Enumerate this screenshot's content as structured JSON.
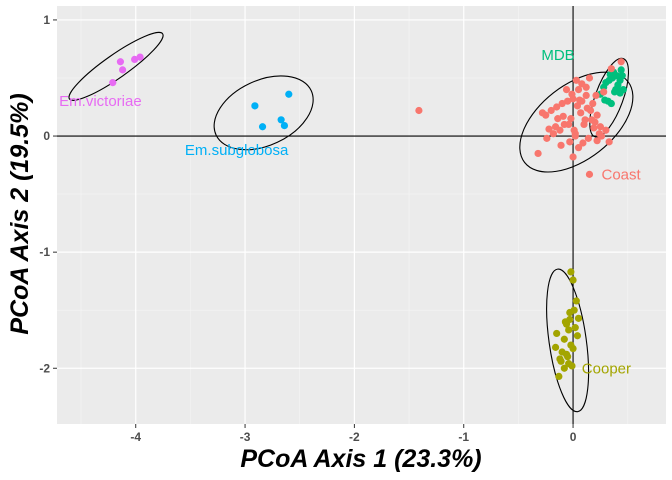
{
  "chart_data": {
    "type": "scatter",
    "xlabel": "PCoA Axis 1 (23.3%)",
    "ylabel": "PCoA Axis 2 (19.5%)",
    "xlim": [
      -4.72,
      0.85
    ],
    "ylim": [
      -2.48,
      1.12
    ],
    "xticks": [
      -4,
      -3,
      -2,
      -1,
      0
    ],
    "yticks": [
      -2,
      -1,
      0,
      1
    ],
    "grid": true,
    "legend": "none",
    "reference_lines": {
      "x": 0,
      "y": 0
    },
    "colors": {
      "Em.victoriae": "#E76BF3",
      "Em.subglobosa": "#00B0F6",
      "MDB": "#00BF7D",
      "Coast": "#F8766D",
      "Cooper": "#A3A500"
    },
    "series": [
      {
        "name": "Em.victoriae",
        "x": [
          -4.14,
          -4.12,
          -4.01,
          -3.96,
          -4.21
        ],
        "y": [
          0.64,
          0.57,
          0.66,
          0.68,
          0.46
        ],
        "ellipse": {
          "cx": -4.18,
          "cy": 0.6,
          "rx": 0.52,
          "ry": 0.1,
          "angle_deg": 35
        },
        "label": {
          "text": "Em.victoriae",
          "x": -4.7,
          "y": 0.3
        }
      },
      {
        "name": "Em.subglobosa",
        "x": [
          -2.6,
          -2.91,
          -2.84,
          -2.67,
          -2.64
        ],
        "y": [
          0.36,
          0.26,
          0.08,
          0.14,
          0.09
        ],
        "ellipse": {
          "cx": -2.83,
          "cy": 0.2,
          "rx": 0.48,
          "ry": 0.28,
          "angle_deg": 25
        },
        "label": {
          "text": "Em.subglobosa",
          "x": -3.55,
          "y": -0.12
        }
      },
      {
        "name": "MDB",
        "x": [
          0.34,
          0.36,
          0.4,
          0.43,
          0.44,
          0.46,
          0.3,
          0.28,
          0.38,
          0.42,
          0.32,
          0.25,
          0.35,
          0.41,
          0.37,
          0.45,
          0.33,
          0.39,
          0.29,
          0.43
        ],
        "y": [
          0.53,
          0.5,
          0.52,
          0.48,
          0.57,
          0.4,
          0.46,
          0.42,
          0.38,
          0.39,
          0.3,
          0.36,
          0.28,
          0.44,
          0.55,
          0.52,
          0.48,
          0.4,
          0.31,
          0.37
        ],
        "ellipse": {
          "cx": 0.33,
          "cy": 0.33,
          "rx": 0.38,
          "ry": 0.12,
          "angle_deg": 70
        },
        "label": {
          "text": "MDB",
          "x": -0.29,
          "y": 0.7
        }
      },
      {
        "name": "Coast",
        "x": [
          0.44,
          0.35,
          0.03,
          0.05,
          0.08,
          0.12,
          0.15,
          0.0,
          -0.05,
          -0.1,
          -0.15,
          -0.2,
          -0.25,
          -0.28,
          -0.02,
          0.1,
          0.2,
          0.25,
          0.3,
          0.18,
          0.22,
          0.07,
          -0.08,
          -0.12,
          -0.18,
          0.02,
          0.14,
          0.26,
          0.33,
          -0.03,
          0.09,
          0.16,
          0.21,
          0.28,
          -0.06,
          -0.14,
          -0.22,
          0.04,
          0.11,
          0.19,
          0.24,
          -0.01,
          0.06,
          0.13,
          -0.09,
          -0.16,
          0.01,
          0.08,
          0.17,
          -0.04,
          0.0,
          0.12,
          0.22,
          0.05,
          -0.11,
          -0.24,
          -0.32,
          0.02,
          -1.41,
          0.15
        ],
        "y": [
          0.64,
          0.58,
          0.48,
          0.4,
          0.45,
          0.35,
          0.5,
          0.32,
          0.3,
          0.28,
          0.25,
          0.22,
          0.18,
          0.2,
          0.15,
          0.1,
          0.12,
          0.08,
          0.05,
          0.28,
          0.18,
          0.2,
          0.1,
          0.05,
          0.02,
          0.0,
          -0.02,
          0.0,
          -0.05,
          -0.05,
          -0.06,
          0.22,
          0.35,
          0.38,
          0.4,
          0.15,
          0.06,
          0.26,
          0.14,
          0.07,
          0.02,
          0.36,
          0.31,
          0.24,
          0.17,
          0.08,
          0.05,
          0.3,
          0.14,
          0.1,
          -0.18,
          0.42,
          -0.04,
          -0.1,
          -0.08,
          -0.02,
          -0.15,
          0.02,
          0.22,
          -0.33
        ],
        "ellipse": {
          "cx": 0.03,
          "cy": 0.12,
          "rx": 0.6,
          "ry": 0.32,
          "angle_deg": 38
        },
        "label": {
          "text": "Coast",
          "x": 0.26,
          "y": -0.33
        }
      },
      {
        "name": "Cooper",
        "x": [
          -0.02,
          0.0,
          0.03,
          -0.03,
          0.05,
          -0.06,
          0.02,
          -0.04,
          0.04,
          -0.08,
          -0.02,
          0.0,
          -0.1,
          -0.05,
          -0.12,
          -0.04,
          -0.01,
          -0.13,
          -0.07,
          -0.15,
          -0.03,
          -0.06,
          -0.11,
          -0.16,
          0.01,
          -0.08
        ],
        "y": [
          -1.17,
          -1.24,
          -1.42,
          -1.52,
          -1.57,
          -1.62,
          -1.65,
          -1.67,
          -1.72,
          -1.75,
          -1.8,
          -1.83,
          -1.86,
          -1.9,
          -1.92,
          -1.96,
          -1.98,
          -2.07,
          -1.6,
          -1.7,
          -1.58,
          -1.88,
          -1.94,
          -1.82,
          -1.5,
          -2.0
        ],
        "ellipse": {
          "cx": -0.05,
          "cy": -1.76,
          "rx": 0.17,
          "ry": 0.62,
          "angle_deg": 8
        },
        "label": {
          "text": "Cooper",
          "x": 0.08,
          "y": -2.0
        }
      }
    ]
  }
}
